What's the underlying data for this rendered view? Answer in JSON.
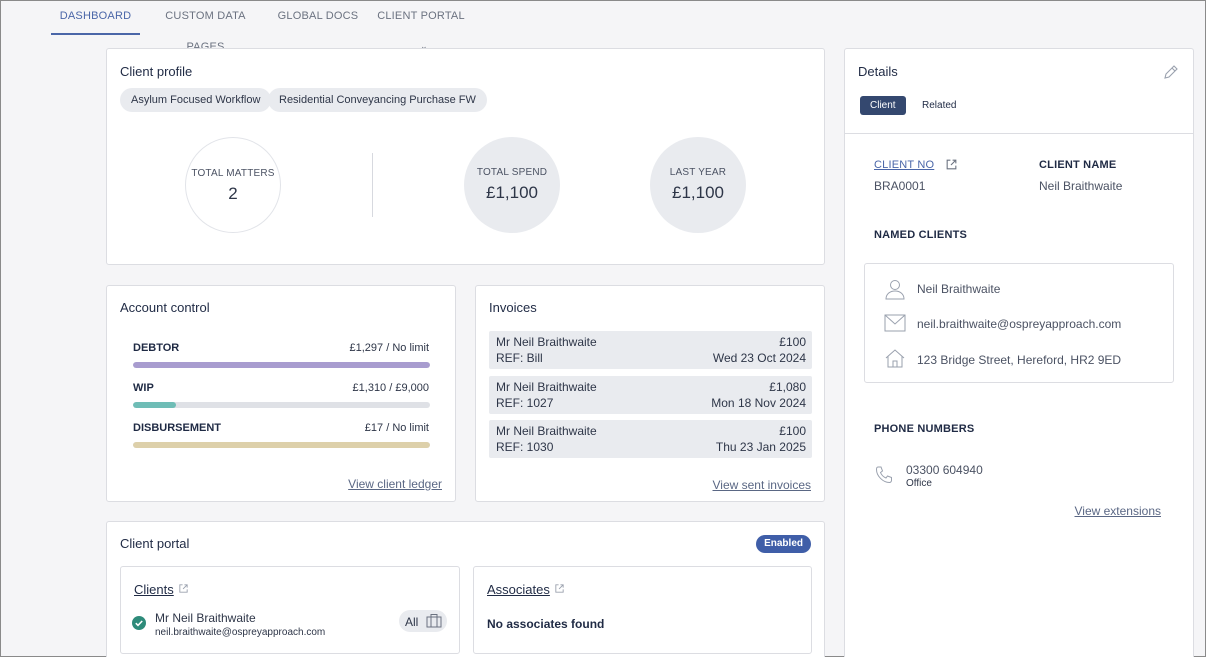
{
  "nav": {
    "tabs": [
      {
        "label": "DASHBOARD"
      },
      {
        "label": "CUSTOM DATA PAGES"
      },
      {
        "label": "GLOBAL DOCS"
      },
      {
        "label": "CLIENT PORTAL"
      }
    ]
  },
  "client_profile": {
    "title": "Client profile",
    "chips": [
      "Asylum Focused Workflow",
      "Residential Conveyancing Purchase FW"
    ],
    "stats": [
      {
        "label": "TOTAL MATTERS",
        "value": "2"
      },
      {
        "label": "TOTAL SPEND",
        "value": "£1,100"
      },
      {
        "label": "LAST YEAR",
        "value": "£1,100"
      }
    ]
  },
  "account_control": {
    "title": "Account control",
    "items": [
      {
        "label": "DEBTOR",
        "value": "£1,297 / No limit",
        "fill": 1.0,
        "color": "#a89ccf"
      },
      {
        "label": "WIP",
        "value": "£1,310 / £9,000",
        "fill": 0.146,
        "color": "#6fbdb6"
      },
      {
        "label": "DISBURSEMENT",
        "value": "£17 / No limit",
        "fill": 1.0,
        "color": "#ddd0aa"
      }
    ],
    "link": "View client ledger"
  },
  "invoices": {
    "title": "Invoices",
    "rows": [
      {
        "name": "Mr Neil Braithwaite",
        "amount": "£100",
        "ref": "REF: Bill",
        "date": "Wed 23 Oct 2024"
      },
      {
        "name": "Mr Neil Braithwaite",
        "amount": "£1,080",
        "ref": "REF: 1027",
        "date": "Mon 18 Nov 2024"
      },
      {
        "name": "Mr Neil Braithwaite",
        "amount": "£100",
        "ref": "REF: 1030",
        "date": "Thu 23 Jan 2025"
      }
    ],
    "link": "View sent invoices"
  },
  "client_portal": {
    "title": "Client portal",
    "status": "Enabled",
    "clients": {
      "title": "Clients",
      "name": "Mr Neil Braithwaite",
      "email": "neil.braithwaite@ospreyapproach.com",
      "scope": "All"
    },
    "associates": {
      "title": "Associates",
      "empty": "No associates found"
    }
  },
  "details": {
    "title": "Details",
    "tabs": [
      "Client",
      "Related"
    ],
    "client_no_label": "CLIENT NO",
    "client_no": "BRA0001",
    "client_name_label": "CLIENT NAME",
    "client_name": "Neil Braithwaite",
    "named_clients_label": "NAMED CLIENTS",
    "named": {
      "name": "Neil Braithwaite",
      "email": "neil.braithwaite@ospreyapproach.com",
      "address": "123 Bridge Street, Hereford, HR2 9ED"
    },
    "phone_label": "PHONE NUMBERS",
    "phone": "03300 604940",
    "phone_type": "Office",
    "extensions_link": "View extensions"
  },
  "colors": {
    "accent": "#4a66a8",
    "badge": "#3f5ea8",
    "segment_active": "#34486f",
    "check": "#2e8b7a"
  }
}
